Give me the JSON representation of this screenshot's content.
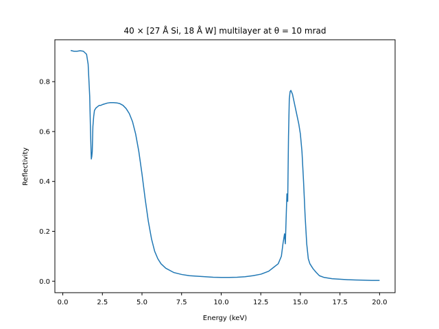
{
  "chart_data": {
    "type": "line",
    "title": "40 × [27 Å Si, 18 Å W] multilayer at θ = 10 mrad",
    "xlabel": "Energy (keV)",
    "ylabel": "Reflectivity",
    "xlim": [
      -0.5,
      20.98
    ],
    "ylim": [
      -0.046,
      0.968
    ],
    "xticks": [
      "0.0",
      "2.5",
      "5.0",
      "7.5",
      "10.0",
      "12.5",
      "15.0",
      "17.5",
      "20.0"
    ],
    "yticks": [
      "0.0",
      "0.2",
      "0.4",
      "0.6",
      "0.8"
    ],
    "grid": false,
    "color": "#1f77b4",
    "series": [
      {
        "x": [
          0.5,
          0.7,
          0.9,
          1.1,
          1.3,
          1.5,
          1.6,
          1.7,
          1.75,
          1.8,
          1.83,
          1.86,
          1.9,
          1.95,
          2.0,
          2.1,
          2.2,
          2.3,
          2.4,
          2.5,
          2.6,
          2.7,
          2.8,
          2.9,
          3.0,
          3.2,
          3.4,
          3.6,
          3.8,
          4.0,
          4.2,
          4.4,
          4.6,
          4.8,
          5.0,
          5.2,
          5.4,
          5.6,
          5.8,
          6.0,
          6.2,
          6.5,
          7.0,
          7.5,
          8.0,
          8.5,
          9.0,
          9.5,
          10.0,
          10.5,
          11.0,
          11.5,
          12.0,
          12.5,
          13.0,
          13.3,
          13.6,
          13.8,
          13.9,
          14.0,
          14.05,
          14.1,
          14.15,
          14.2,
          14.25,
          14.3,
          14.35,
          14.4,
          14.5,
          14.6,
          14.7,
          14.8,
          14.9,
          15.0,
          15.1,
          15.2,
          15.3,
          15.4,
          15.5,
          15.6,
          15.8,
          16.0,
          16.2,
          16.5,
          17.0,
          17.5,
          18.0,
          18.5,
          19.0,
          19.5,
          20.0
        ],
        "y": [
          0.925,
          0.922,
          0.922,
          0.924,
          0.922,
          0.91,
          0.87,
          0.74,
          0.6,
          0.49,
          0.5,
          0.52,
          0.62,
          0.66,
          0.685,
          0.695,
          0.7,
          0.705,
          0.705,
          0.708,
          0.71,
          0.712,
          0.714,
          0.715,
          0.716,
          0.716,
          0.715,
          0.712,
          0.705,
          0.692,
          0.672,
          0.64,
          0.59,
          0.52,
          0.43,
          0.33,
          0.24,
          0.17,
          0.12,
          0.09,
          0.07,
          0.052,
          0.035,
          0.027,
          0.022,
          0.02,
          0.018,
          0.016,
          0.015,
          0.015,
          0.016,
          0.018,
          0.022,
          0.028,
          0.04,
          0.055,
          0.07,
          0.1,
          0.15,
          0.19,
          0.15,
          0.25,
          0.35,
          0.32,
          0.58,
          0.73,
          0.76,
          0.765,
          0.75,
          0.72,
          0.69,
          0.66,
          0.63,
          0.59,
          0.52,
          0.4,
          0.26,
          0.15,
          0.09,
          0.07,
          0.05,
          0.035,
          0.022,
          0.015,
          0.01,
          0.008,
          0.006,
          0.005,
          0.004,
          0.003,
          0.003
        ]
      }
    ]
  }
}
